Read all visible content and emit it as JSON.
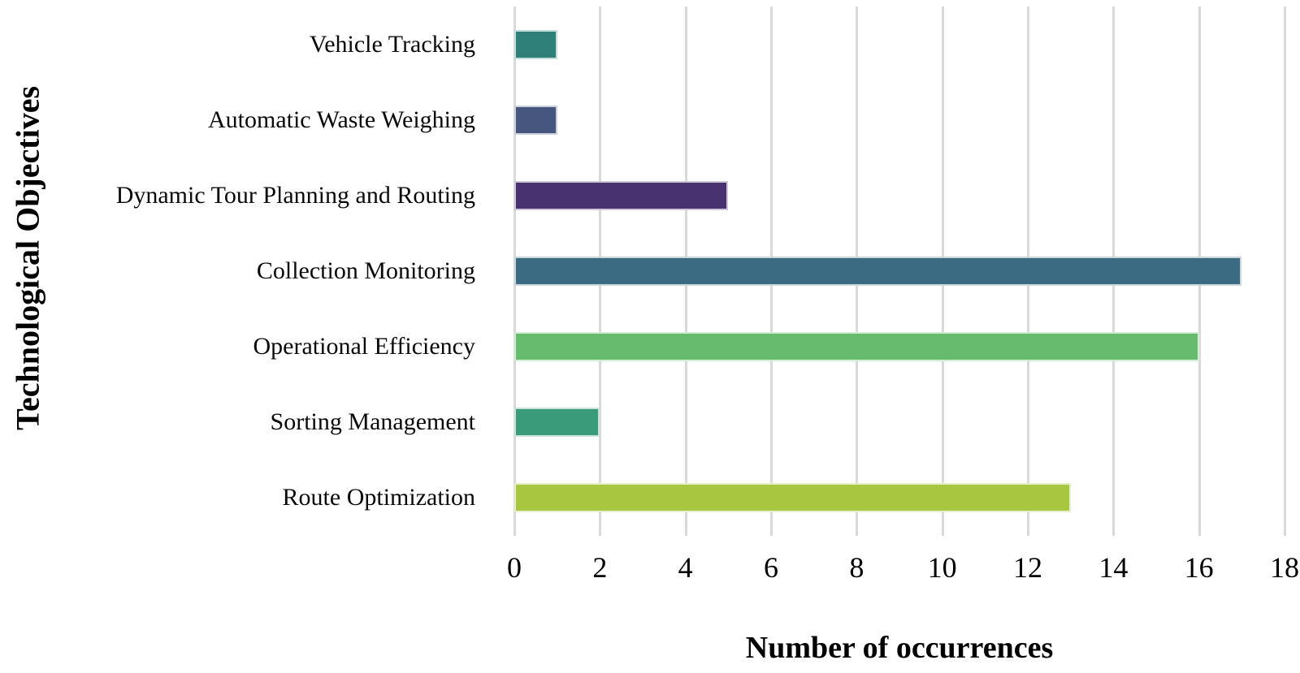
{
  "chart_data": {
    "type": "bar",
    "orientation": "horizontal",
    "title": "",
    "xlabel": "Number of occurrences",
    "ylabel": "Technological Objectives",
    "categories": [
      "Vehicle Tracking",
      "Automatic Waste Weighing",
      "Dynamic Tour Planning and Routing",
      "Collection Monitoring",
      "Operational Efficiency",
      "Sorting Management",
      "Route Optimization"
    ],
    "values": [
      1,
      1,
      5,
      17,
      16,
      2,
      13
    ],
    "bar_colors": [
      "#2F8078",
      "#46567E",
      "#483370",
      "#3A6B82",
      "#67BB6E",
      "#3A9B7B",
      "#A6C73F"
    ],
    "xlim": [
      0,
      18
    ],
    "xticks": [
      0,
      2,
      4,
      6,
      8,
      10,
      12,
      14,
      16,
      18
    ],
    "grid": "vertical-gridlines-on",
    "gridline_color": "#d9d9d9",
    "legend": "none",
    "text_color": "#000000"
  }
}
